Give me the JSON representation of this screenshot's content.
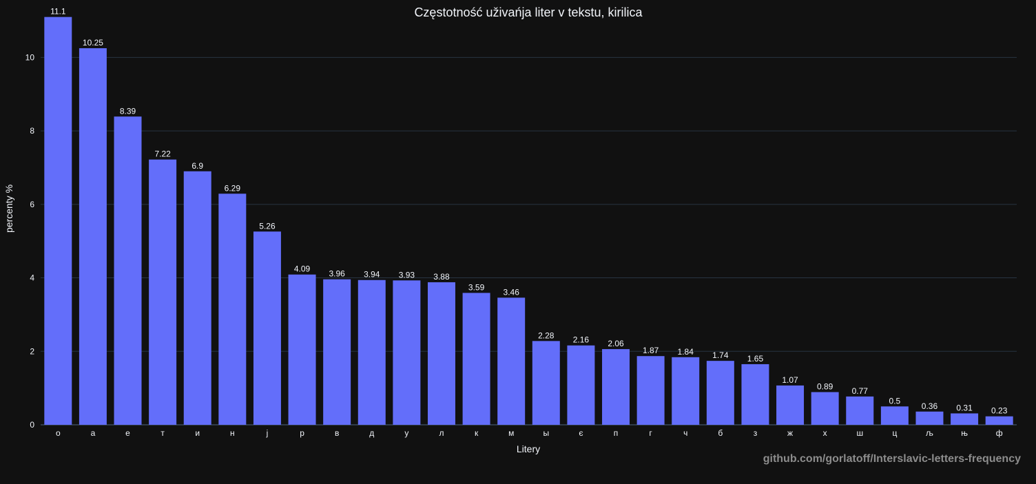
{
  "colors": {
    "background": "#111111",
    "bar": "#636efa",
    "grid": "#283442",
    "text": "#f2f5fa",
    "watermark": "#8c8c8c"
  },
  "watermark": "github.com/gorlatoff/Interslavic-letters-frequency",
  "chart_data": {
    "type": "bar",
    "title": "Częstotność uživańja liter v tekstu, kirilica",
    "xlabel": "Litery",
    "ylabel": "percenty %",
    "ylim": [
      0,
      11.15
    ],
    "yticks": [
      0,
      2,
      4,
      6,
      8,
      10
    ],
    "grid": true,
    "categories": [
      "о",
      "а",
      "е",
      "т",
      "и",
      "н",
      "ј",
      "р",
      "в",
      "д",
      "у",
      "л",
      "к",
      "м",
      "ы",
      "є",
      "п",
      "г",
      "ч",
      "б",
      "з",
      "ж",
      "х",
      "ш",
      "ц",
      "љ",
      "њ",
      "ф"
    ],
    "values": [
      11.1,
      10.25,
      8.39,
      7.22,
      6.9,
      6.29,
      5.26,
      4.09,
      3.96,
      3.94,
      3.93,
      3.88,
      3.59,
      3.46,
      2.28,
      2.16,
      2.06,
      1.87,
      1.84,
      1.74,
      1.65,
      1.07,
      0.89,
      0.77,
      0.5,
      0.36,
      0.31,
      0.23
    ],
    "data_labels": [
      "11.1",
      "10.25",
      "8.39",
      "7.22",
      "6.9",
      "6.29",
      "5.26",
      "4.09",
      "3.96",
      "3.94",
      "3.93",
      "3.88",
      "3.59",
      "3.46",
      "2.28",
      "2.16",
      "2.06",
      "1.87",
      "1.84",
      "1.74",
      "1.65",
      "1.07",
      "0.89",
      "0.77",
      "0.5",
      "0.36",
      "0.31",
      "0.23"
    ]
  }
}
